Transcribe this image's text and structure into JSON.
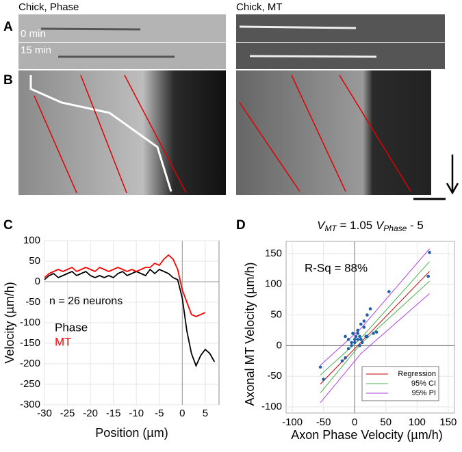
{
  "panels": {
    "labels": [
      "A",
      "B",
      "C",
      "D"
    ],
    "image_titles": [
      "Chick, Phase",
      "Chick, MT"
    ],
    "time_labels": [
      "0 min",
      "15 min"
    ]
  },
  "chart_data": [
    {
      "type": "line",
      "xlabel": "Position (µm)",
      "ylabel": "Velocity (µm/h)",
      "annotation": "n = 26 neurons",
      "x": [
        -30,
        -29,
        -28,
        -27,
        -26,
        -25,
        -24,
        -23,
        -22,
        -21,
        -20,
        -19,
        -18,
        -17,
        -16,
        -15,
        -14,
        -13,
        -12,
        -11,
        -10,
        -9,
        -8,
        -7,
        -6,
        -5,
        -4,
        -3,
        -2,
        -1,
        0,
        1,
        2,
        3,
        4,
        5,
        6,
        7
      ],
      "series": [
        {
          "name": "Phase",
          "color": "#000000",
          "values": [
            5,
            15,
            20,
            10,
            15,
            20,
            25,
            15,
            20,
            25,
            15,
            10,
            15,
            10,
            15,
            10,
            20,
            25,
            15,
            20,
            25,
            20,
            15,
            30,
            20,
            30,
            25,
            20,
            10,
            5,
            -40,
            -120,
            -175,
            -205,
            -180,
            -165,
            -175,
            -195
          ]
        },
        {
          "name": "MT",
          "color": "#ff0000",
          "values": [
            10,
            20,
            25,
            30,
            25,
            30,
            35,
            25,
            30,
            35,
            30,
            25,
            35,
            30,
            25,
            30,
            35,
            30,
            25,
            30,
            25,
            30,
            35,
            35,
            45,
            40,
            55,
            65,
            55,
            30,
            -20,
            -50,
            -80,
            -85,
            -80,
            -75,
            null,
            null
          ]
        }
      ],
      "xlim": [
        -30,
        8
      ],
      "ylim": [
        -300,
        100
      ],
      "xticks": [
        -30,
        -25,
        -20,
        -15,
        -10,
        -5,
        0,
        5
      ],
      "yticks": [
        100,
        50,
        0,
        -50,
        -100,
        -150,
        -200,
        -250,
        -300
      ],
      "grid": true
    },
    {
      "type": "scatter",
      "title_parts": [
        "V",
        "MT",
        " = 1.05 ",
        "V",
        "Phase",
        " - 5"
      ],
      "annotation": "R-Sq = 88%",
      "xlabel": "Axon Phase Velocity (µm/h)",
      "ylabel": "Axonal MT Velocity (µm/h)",
      "color": "#1f5fa8",
      "x": [
        -55,
        -50,
        -20,
        -15,
        -10,
        -5,
        -15,
        -10,
        -5,
        0,
        0,
        2,
        5,
        5,
        8,
        8,
        10,
        12,
        10,
        15,
        18,
        20,
        20,
        25,
        30,
        35,
        55,
        120,
        118,
        15,
        -3,
        5
      ],
      "values": [
        -35,
        -55,
        -25,
        -20,
        -5,
        0,
        15,
        10,
        5,
        10,
        5,
        15,
        10,
        20,
        0,
        15,
        10,
        5,
        35,
        30,
        15,
        15,
        50,
        60,
        20,
        22,
        88,
        152,
        113,
        40,
        20,
        25
      ],
      "series": [
        {
          "name": "Regression",
          "color": "#c00000",
          "x": [
            -55,
            120
          ],
          "values": [
            -62.75,
            121
          ]
        },
        {
          "name": "95% CI",
          "color": "#4caf50",
          "x": [
            -55,
            10,
            120
          ],
          "values": [
            -48,
            12,
            137
          ]
        },
        {
          "name": "95% CI",
          "color": "#4caf50",
          "x": [
            -55,
            10,
            120
          ],
          "values": [
            -77,
            3,
            105
          ]
        },
        {
          "name": "95% PI",
          "color": "#b040e0",
          "x": [
            -55,
            10,
            120
          ],
          "values": [
            -32,
            28,
            158
          ]
        },
        {
          "name": "95% PI",
          "color": "#b040e0",
          "x": [
            -55,
            10,
            120
          ],
          "values": [
            -93,
            -13,
            85
          ]
        }
      ],
      "legend": "lower right",
      "xlim": [
        -110,
        160
      ],
      "ylim": [
        -110,
        170
      ],
      "xticks": [
        -100,
        -50,
        0,
        50,
        100,
        150
      ],
      "yticks": [
        150,
        100,
        50,
        0,
        -50,
        -100
      ],
      "grid": true
    }
  ]
}
